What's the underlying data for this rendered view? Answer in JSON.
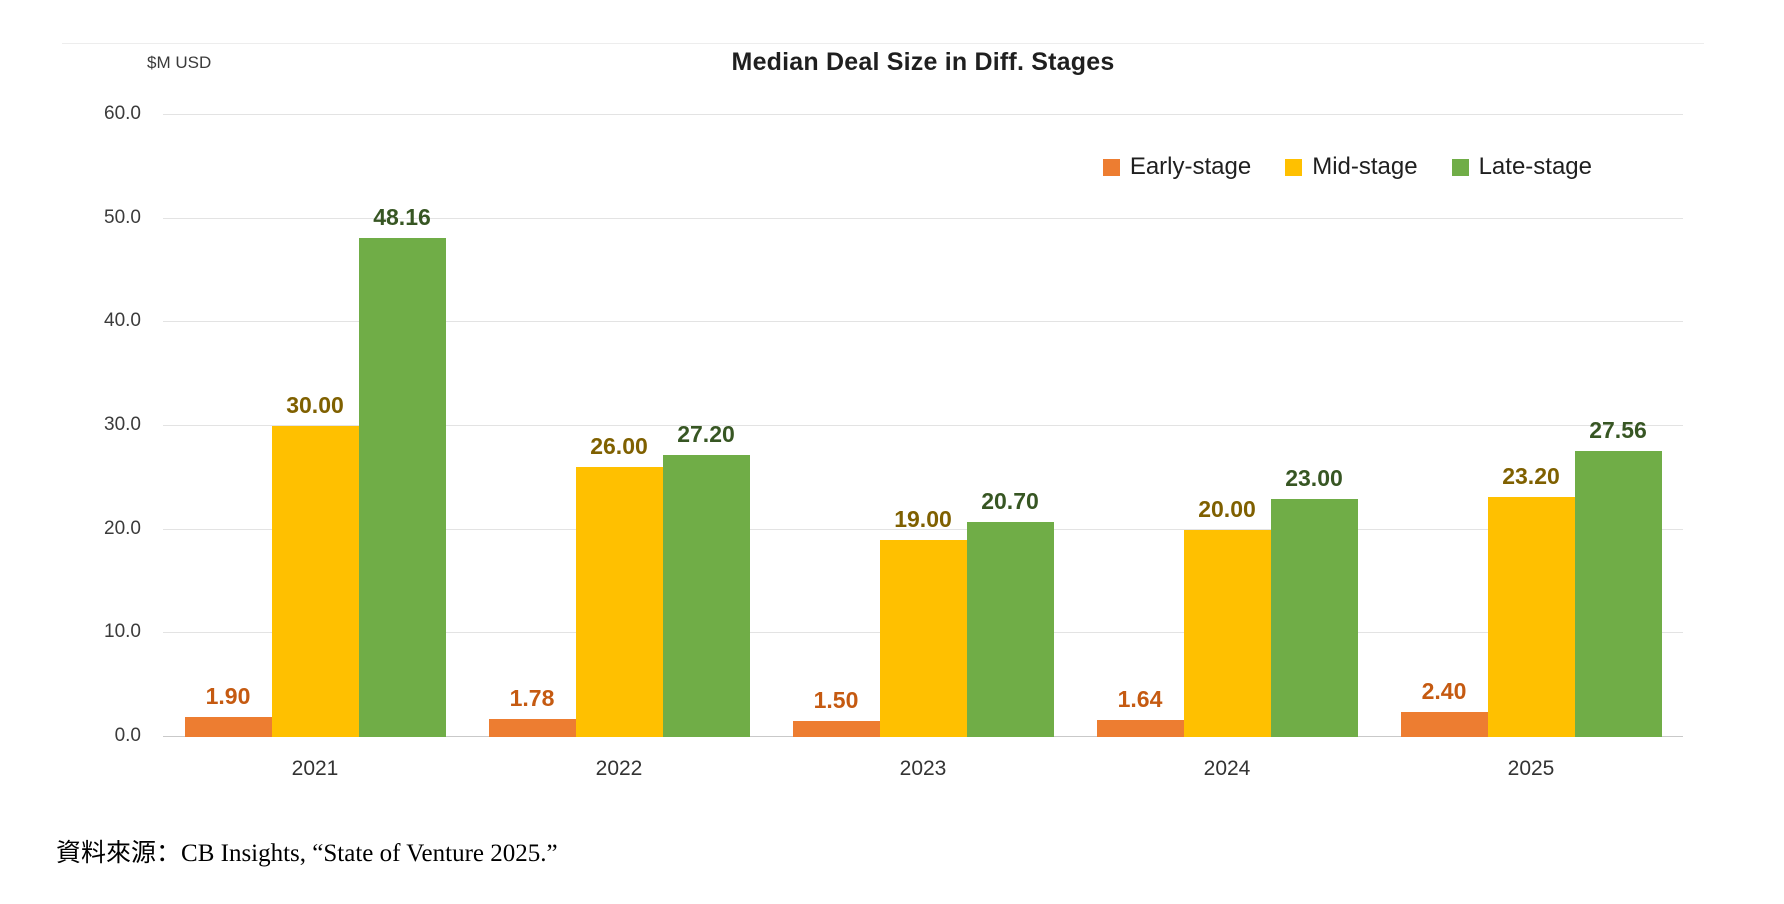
{
  "chart": {
    "title": "Median Deal Size in Diff. Stages",
    "units_label": "$M USD"
  },
  "chart_data": {
    "type": "bar",
    "title": "Median Deal Size in Diff. Stages",
    "ylabel": "$M USD",
    "xlabel": "",
    "categories": [
      "2021",
      "2022",
      "2023",
      "2024",
      "2025"
    ],
    "series": [
      {
        "name": "Early-stage",
        "color": "#ED7D31",
        "label_color": "#C55A11",
        "values": [
          1.9,
          1.78,
          1.5,
          1.64,
          2.4
        ]
      },
      {
        "name": "Mid-stage",
        "color": "#FFC000",
        "label_color": "#7F6000",
        "values": [
          30.0,
          26.0,
          19.0,
          20.0,
          23.2
        ]
      },
      {
        "name": "Late-stage",
        "color": "#70AD47",
        "label_color": "#375623",
        "values": [
          48.16,
          27.2,
          20.7,
          23.0,
          27.56
        ]
      }
    ],
    "ylim": [
      0,
      60
    ],
    "ytick_step": 10,
    "ytick_labels": [
      "0.0",
      "10.0",
      "20.0",
      "30.0",
      "40.0",
      "50.0",
      "60.0"
    ],
    "grid": true,
    "legend_position": "top-right",
    "value_label_decimals": 2
  },
  "source": {
    "prefix": "資料來源：",
    "citation": "CB Insights, “State of Venture 2025.”"
  }
}
